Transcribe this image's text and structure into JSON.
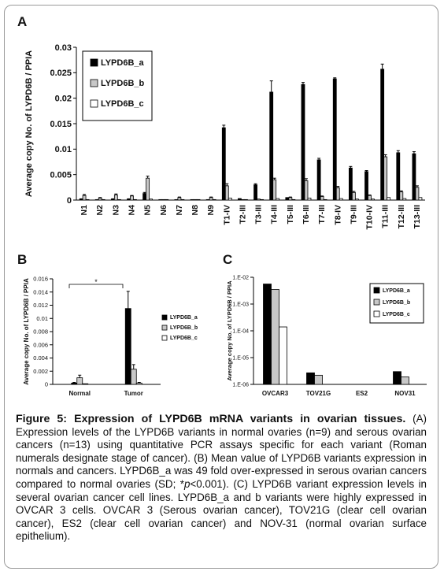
{
  "colors": {
    "series_a": "#000000",
    "series_b": "#c8c8c8",
    "series_c": "#ffffff",
    "axis": "#000000"
  },
  "chart_data": [
    {
      "panel": "A",
      "type": "bar",
      "ylabel": "Average copy No. of LYPD6B / PPIA",
      "xlabel": "",
      "ylim": [
        0,
        0.03
      ],
      "yticks": [
        "0",
        "0.005",
        "0.01",
        "0.015",
        "0.02",
        "0.025",
        "0.03"
      ],
      "yticks_values": [
        0,
        0.005,
        0.01,
        0.015,
        0.02,
        0.025,
        0.03
      ],
      "legend_position": "top-left",
      "categories": [
        "N1",
        "N2",
        "N3",
        "N4",
        "N5",
        "N6",
        "N7",
        "N8",
        "N9",
        "T1-IV",
        "T2-III",
        "T3-III",
        "T4-III",
        "T5-III",
        "T6-III",
        "T7-III",
        "T8-IV",
        "T9-III",
        "T10-IV",
        "T11-III",
        "T12-III",
        "T13-III"
      ],
      "series": [
        {
          "name": "LYPD6B_a",
          "values": [
            0.0002,
            0.0001,
            0.0002,
            0.0002,
            0.0013,
            0.0001,
            0.0001,
            0.0001,
            0.0001,
            0.0142,
            0.0003,
            0.003,
            0.0212,
            0.0005,
            0.0227,
            0.0079,
            0.0238,
            0.0063,
            0.0056,
            0.0257,
            0.0093,
            0.0091
          ]
        },
        {
          "name": "LYPD6B_b",
          "values": [
            0.0009,
            0.0004,
            0.001,
            0.0008,
            0.0043,
            0.0001,
            0.0005,
            0.0001,
            0.0005,
            0.0028,
            0.0001,
            0.0002,
            0.004,
            0.0005,
            0.0038,
            0.0007,
            0.0024,
            0.0015,
            0.0009,
            0.0085,
            0.0016,
            0.0025
          ]
        },
        {
          "name": "LYPD6B_c",
          "values": [
            0.0001,
            0.0001,
            0.0001,
            0.0001,
            0.0002,
            0.0001,
            0.0001,
            0.0001,
            0.0001,
            0.0004,
            0.0001,
            0.0001,
            0.0003,
            0.0001,
            0.0004,
            0.0001,
            0.0003,
            0.0002,
            0.0002,
            0.0005,
            0.0003,
            0.0005
          ]
        }
      ],
      "errors": [
        [
          5e-05,
          0,
          5e-05,
          5e-05,
          0.0002,
          0,
          0,
          0,
          0,
          0.0005,
          0,
          0.0002,
          0.0022,
          0,
          0.0004,
          0.0003,
          0.0002,
          0.0003,
          0.0002,
          0.001,
          0.0004,
          0.0004
        ],
        [
          0.0002,
          0.0001,
          0.0002,
          0.0001,
          0.0004,
          0,
          0.0001,
          0,
          0.0001,
          0.0004,
          0,
          0,
          0.0003,
          0.0001,
          0.0004,
          0.0001,
          0.0003,
          0.0002,
          0.0001,
          0.0004,
          0.0002,
          0.0003
        ],
        [
          0,
          0,
          0,
          0,
          0,
          0,
          0,
          0,
          0,
          0,
          0,
          0,
          0,
          0,
          0,
          0,
          0,
          0,
          0,
          0,
          0,
          0
        ]
      ]
    },
    {
      "panel": "B",
      "type": "bar",
      "ylabel": "Average copy No. of LYPD6B / PPIA",
      "xlabel": "",
      "ylim": [
        0,
        0.016
      ],
      "yticks": [
        "0",
        "0.002",
        "0.004",
        "0.006",
        "0.008",
        "0.01",
        "0.012",
        "0.014",
        "0.016"
      ],
      "yticks_values": [
        0,
        0.002,
        0.004,
        0.006,
        0.008,
        0.01,
        0.012,
        0.014,
        0.016
      ],
      "legend_position": "right",
      "categories": [
        "Normal",
        "Tumor"
      ],
      "series": [
        {
          "name": "LYPD6B_a",
          "values": [
            0.0002,
            0.0115
          ]
        },
        {
          "name": "LYPD6B_b",
          "values": [
            0.001,
            0.0023
          ]
        },
        {
          "name": "LYPD6B_c",
          "values": [
            0.0001,
            0.0002
          ]
        }
      ],
      "errors": [
        [
          0.0001,
          0.0026
        ],
        [
          0.0004,
          0.0007
        ],
        [
          0,
          0.0001
        ]
      ],
      "annotation": "*"
    },
    {
      "panel": "C",
      "type": "bar",
      "scale": "log",
      "ylabel": "Average copy No. of LYPD6B / PPIA",
      "xlabel": "",
      "ylim": [
        1e-06,
        0.01
      ],
      "yticks": [
        "1.E-06",
        "1.E-05",
        "1.E-04",
        "1.E-03",
        "1.E-02"
      ],
      "yticks_values": [
        1e-06,
        1e-05,
        0.0001,
        0.001,
        0.01
      ],
      "legend_position": "top-right",
      "categories": [
        "OVCAR3",
        "TOV21G",
        "ES2",
        "NOV31"
      ],
      "series": [
        {
          "name": "LYPD6B_a",
          "values": [
            0.0056,
            2.7e-06,
            1e-06,
            3e-06
          ]
        },
        {
          "name": "LYPD6B_b",
          "values": [
            0.0035,
            2.2e-06,
            1e-06,
            1.9e-06
          ]
        },
        {
          "name": "LYPD6B_c",
          "values": [
            0.00014,
            1e-06,
            1e-06,
            1e-06
          ]
        }
      ]
    }
  ],
  "caption": {
    "title": "Figure 5: Expression of LYPD6B mRNA variants in ovarian tissues.",
    "body_1": " (A) Expression levels of the LYPD6B variants in normal ovaries (n=9) and serous ovarian cancers (n=13) using quantitative PCR assays specific for each variant (Roman numerals designate stage of cancer). (B) Mean value of LYPD6B variants expression in normals and cancers. LYPD6B_a was 49 fold over-expressed in serous ovarian cancers compared to normal ovaries (SD; *",
    "p_symbol": "p",
    "body_2": "<0.001). (C) LYPD6B variant expression levels in several ovarian cancer cell lines. LYPD6B_a and b variants were highly expressed in OVCAR 3 cells. OVCAR 3 (Serous ovarian cancer), TOV21G (clear cell ovarian cancer), ES2 (clear cell ovarian cancer) and NOV-31 (normal ovarian surface epithelium)."
  }
}
